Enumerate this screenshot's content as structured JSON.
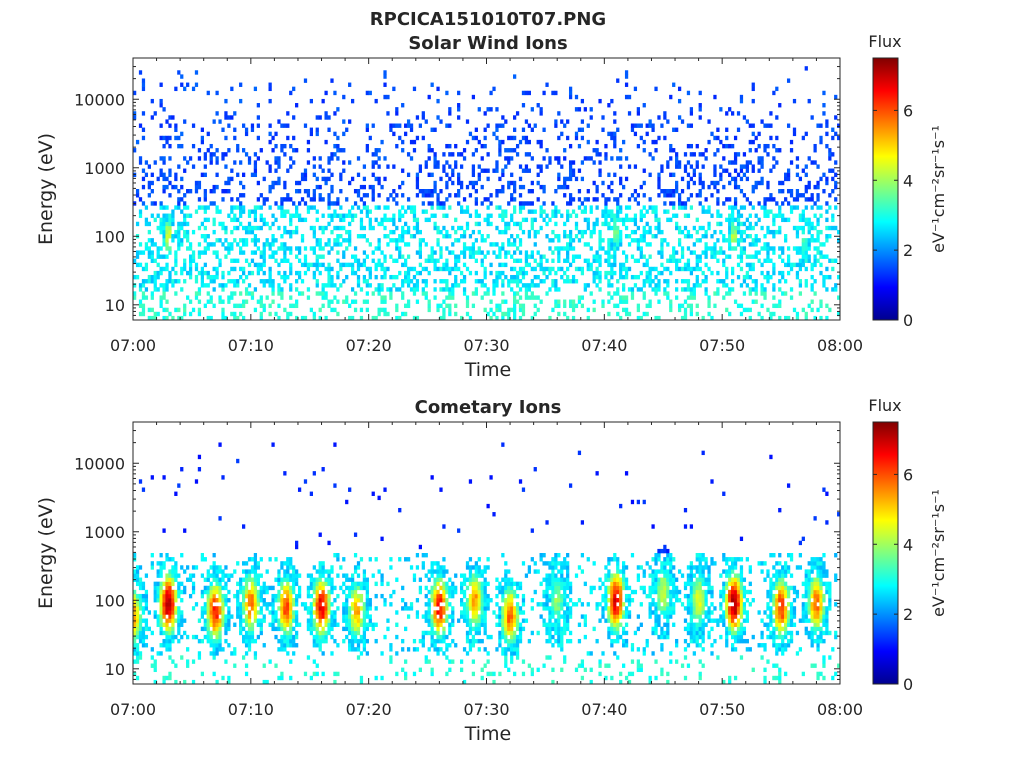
{
  "figure_title": "RPCICA151010T07.PNG",
  "chart_data": [
    {
      "type": "heatmap",
      "title": "Solar Wind Ions",
      "xlabel": "Time",
      "ylabel": "Energy (eV)",
      "x_ticks": [
        "07:00",
        "07:10",
        "07:20",
        "07:30",
        "07:40",
        "07:50",
        "08:00"
      ],
      "xlim": [
        "07:00",
        "08:00"
      ],
      "y_scale": "log",
      "ylim": [
        6,
        40000
      ],
      "y_ticks": [
        "10",
        "100",
        "1000",
        "10000"
      ],
      "colorbar": {
        "label": "Flux",
        "unit_label": "eV⁻¹cm⁻²sr⁻¹s⁻¹",
        "ticks": [
          "0",
          "2",
          "4",
          "6"
        ],
        "range": [
          0,
          7.5
        ],
        "colormap": "jet"
      },
      "features": [
        {
          "desc": "sparse high-energy counts",
          "energy_range": [
            300,
            30000
          ],
          "flux": 1.2
        },
        {
          "desc": "background band",
          "energy_range": [
            10,
            300
          ],
          "flux": 2.3
        },
        {
          "time": "07:03",
          "energy_center": 100,
          "flux": 4.5
        },
        {
          "time": "07:41",
          "energy_center": 120,
          "flux": 3.8
        },
        {
          "time": "07:51",
          "energy_center": 100,
          "flux": 4.2
        },
        {
          "time": "07:57",
          "energy_center": 100,
          "flux": 3.4
        }
      ]
    },
    {
      "type": "heatmap",
      "title": "Cometary Ions",
      "xlabel": "Time",
      "ylabel": "Energy (eV)",
      "x_ticks": [
        "07:00",
        "07:10",
        "07:20",
        "07:30",
        "07:40",
        "07:50",
        "08:00"
      ],
      "xlim": [
        "07:00",
        "08:00"
      ],
      "y_scale": "log",
      "ylim": [
        6,
        40000
      ],
      "y_ticks": [
        "10",
        "100",
        "1000",
        "10000"
      ],
      "colorbar": {
        "label": "Flux",
        "unit_label": "eV⁻¹cm⁻²sr⁻¹s⁻¹",
        "ticks": [
          "0",
          "2",
          "4",
          "6"
        ],
        "range": [
          0,
          7.5
        ],
        "colormap": "jet"
      },
      "features": [
        {
          "time": "07:00",
          "energy_center": 60,
          "flux": 5.2
        },
        {
          "time": "07:03",
          "energy_center": 90,
          "flux": 7.0
        },
        {
          "time": "07:07",
          "energy_center": 70,
          "flux": 6.2
        },
        {
          "time": "07:10",
          "energy_center": 90,
          "flux": 5.5
        },
        {
          "time": "07:13",
          "energy_center": 80,
          "flux": 5.8
        },
        {
          "time": "07:16",
          "energy_center": 80,
          "flux": 6.5
        },
        {
          "time": "07:19",
          "energy_center": 70,
          "flux": 5.0
        },
        {
          "time": "07:26",
          "energy_center": 80,
          "flux": 6.3
        },
        {
          "time": "07:29",
          "energy_center": 100,
          "flux": 5.2
        },
        {
          "time": "07:32",
          "energy_center": 60,
          "flux": 5.6
        },
        {
          "time": "07:36",
          "energy_center": 100,
          "flux": 3.6
        },
        {
          "time": "07:41",
          "energy_center": 100,
          "flux": 6.6
        },
        {
          "time": "07:45",
          "energy_center": 130,
          "flux": 4.0
        },
        {
          "time": "07:48",
          "energy_center": 100,
          "flux": 4.3
        },
        {
          "time": "07:51",
          "energy_center": 90,
          "flux": 7.0
        },
        {
          "time": "07:55",
          "energy_center": 80,
          "flux": 6.0
        },
        {
          "time": "07:58",
          "energy_center": 90,
          "flux": 5.5
        }
      ]
    }
  ]
}
